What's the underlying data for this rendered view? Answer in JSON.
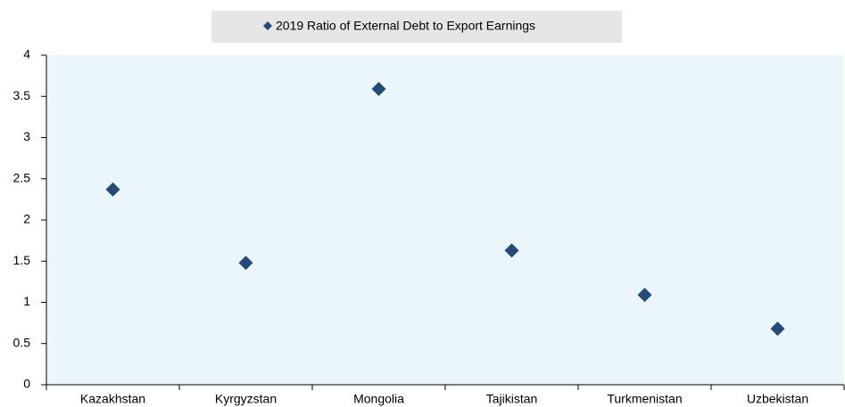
{
  "chart_data": {
    "type": "scatter",
    "categories": [
      "Kazakhstan",
      "Kyrgyzstan",
      "Mongolia",
      "Tajikistan",
      "Turkmenistan",
      "Uzbekistan"
    ],
    "series": [
      {
        "name": "2019 Ratio of External Debt to Export Earnings",
        "color": "#244a78",
        "values": [
          2.37,
          1.48,
          3.59,
          1.63,
          1.09,
          0.68
        ]
      }
    ],
    "ylim": [
      0,
      4
    ],
    "yticks": [
      0,
      0.5,
      1,
      1.5,
      2,
      2.5,
      3,
      3.5,
      4
    ],
    "legend": "top"
  }
}
